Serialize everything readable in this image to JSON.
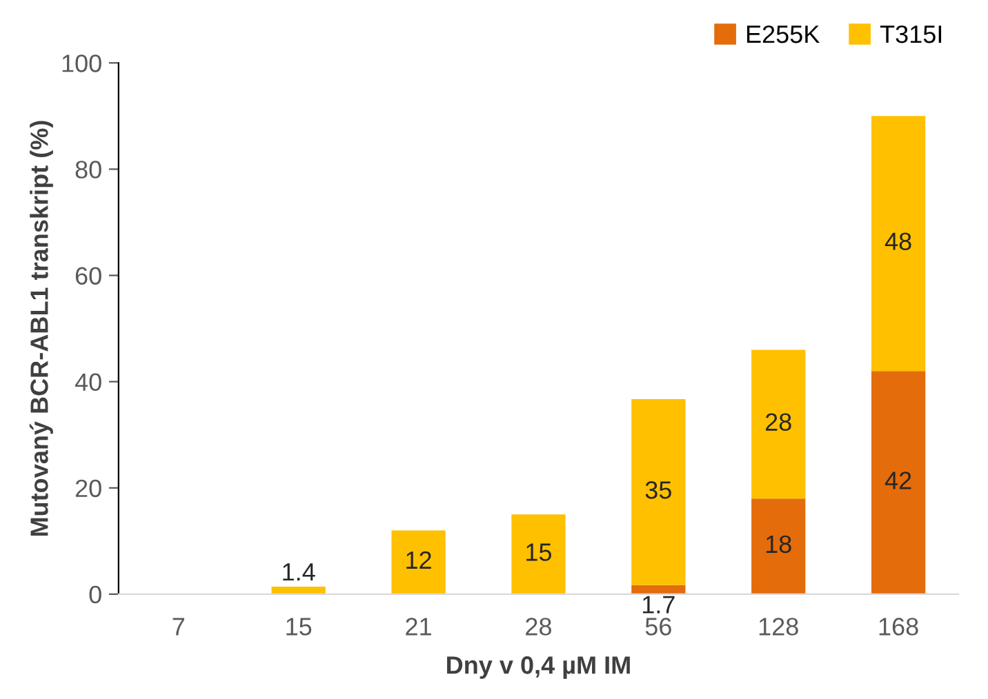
{
  "chart_data": {
    "type": "bar",
    "stacked": true,
    "xlabel": "Dny v 0,4 µM IM",
    "ylabel": "Mutovaný BCR-ABL1 transkript (%)",
    "categories": [
      "7",
      "15",
      "21",
      "28",
      "56",
      "128",
      "168"
    ],
    "series": [
      {
        "name": "E255K",
        "color": "#e46c0a",
        "values": [
          null,
          null,
          null,
          null,
          1.7,
          18,
          42
        ],
        "value_labels": [
          null,
          null,
          null,
          null,
          "1.7",
          "18",
          "42"
        ]
      },
      {
        "name": "T315I",
        "color": "#ffc000",
        "values": [
          null,
          1.4,
          12,
          15,
          35,
          28,
          48
        ],
        "value_labels": [
          null,
          "1.4",
          "12",
          "15",
          "35",
          "28",
          "48"
        ]
      }
    ],
    "ylim": [
      0,
      100
    ],
    "yticks": [
      0,
      20,
      40,
      60,
      80,
      100
    ],
    "grid": false,
    "legend": "top right"
  }
}
